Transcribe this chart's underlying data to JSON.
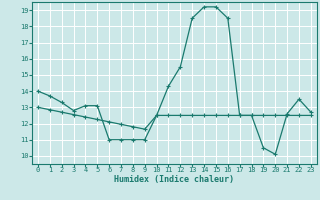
{
  "xlabel": "Humidex (Indice chaleur)",
  "background_color": "#cce8e8",
  "grid_color": "#ffffff",
  "line_color": "#1a7a6e",
  "xlim": [
    -0.5,
    23.5
  ],
  "ylim": [
    9.5,
    19.5
  ],
  "yticks": [
    10,
    11,
    12,
    13,
    14,
    15,
    16,
    17,
    18,
    19
  ],
  "xticks": [
    0,
    1,
    2,
    3,
    4,
    5,
    6,
    7,
    8,
    9,
    10,
    11,
    12,
    13,
    14,
    15,
    16,
    17,
    18,
    19,
    20,
    21,
    22,
    23
  ],
  "series1_x": [
    0,
    1,
    2,
    3,
    4,
    5,
    6,
    7,
    8,
    9,
    10,
    11,
    12,
    13,
    14,
    15,
    16,
    17,
    18,
    19,
    20,
    21,
    22,
    23
  ],
  "series1_y": [
    14.0,
    13.7,
    13.3,
    12.8,
    13.1,
    13.1,
    11.0,
    11.0,
    11.0,
    11.0,
    12.5,
    14.3,
    15.5,
    18.5,
    19.2,
    19.2,
    18.5,
    12.5,
    12.5,
    10.5,
    10.1,
    12.6,
    13.5,
    12.7
  ],
  "series2_x": [
    0,
    1,
    2,
    3,
    4,
    5,
    6,
    7,
    8,
    9,
    10,
    11,
    12,
    13,
    14,
    15,
    16,
    17,
    18,
    19,
    20,
    21,
    22,
    23
  ],
  "series2_y": [
    13.0,
    12.85,
    12.7,
    12.55,
    12.4,
    12.25,
    12.1,
    11.95,
    11.8,
    11.65,
    12.5,
    12.5,
    12.5,
    12.5,
    12.5,
    12.5,
    12.5,
    12.5,
    12.5,
    12.5,
    12.5,
    12.5,
    12.5,
    12.5
  ],
  "tick_labelsize": 5.0,
  "xlabel_fontsize": 6.0
}
